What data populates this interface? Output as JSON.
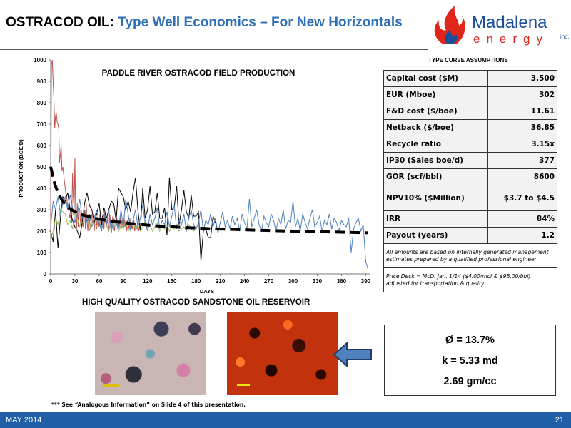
{
  "header": {
    "title_prefix": "OSTRACOD OIL:",
    "title_main": "Type Well Economics – For New Horizontals",
    "logo": {
      "word1": "Madalena",
      "word2": "energy",
      "suffix": "inc."
    }
  },
  "chart_data": {
    "type": "line",
    "title": "PADDLE RIVER OSTRACOD FIELD PRODUCTION",
    "xlabel": "DAYS",
    "ylabel": "PRODUCTION (BOE/D)",
    "xlim": [
      0,
      395
    ],
    "ylim": [
      0,
      1000
    ],
    "x_ticks": [
      0,
      30,
      60,
      90,
      120,
      150,
      180,
      210,
      240,
      270,
      300,
      330,
      360,
      390
    ],
    "y_ticks": [
      0,
      100,
      200,
      300,
      400,
      500,
      600,
      700,
      800,
      900,
      1000
    ],
    "grid": false,
    "legend": "none",
    "series": [
      {
        "color": "#c0504d",
        "x": [
          0,
          1,
          2,
          3,
          4,
          5,
          6,
          7,
          8,
          9,
          10,
          11,
          12,
          13,
          14,
          15,
          16,
          17,
          18,
          19,
          20,
          21,
          22,
          23,
          24,
          25,
          26,
          27,
          28,
          29,
          30,
          31,
          32,
          33,
          34,
          35,
          36,
          37,
          38,
          39,
          40,
          41,
          42,
          43,
          44,
          45,
          46,
          47,
          48,
          49,
          50,
          51,
          52,
          53,
          54,
          55,
          56,
          57,
          58,
          59,
          60,
          61,
          62,
          63,
          64,
          65,
          66,
          67,
          68,
          69,
          70,
          71,
          72,
          73,
          74,
          75,
          76,
          77,
          78,
          79,
          80,
          81,
          82,
          83,
          84,
          85,
          86,
          87,
          88,
          89,
          90,
          91,
          92,
          93,
          94,
          95,
          96,
          97,
          98,
          99,
          100,
          101,
          102,
          103,
          104,
          105,
          106,
          107,
          108,
          109,
          110
        ],
        "y": [
          200,
          980,
          1000,
          900,
          820,
          680,
          740,
          750,
          710,
          700,
          680,
          520,
          560,
          600,
          480,
          500,
          470,
          430,
          400,
          370,
          350,
          320,
          300,
          280,
          260,
          290,
          240,
          470,
          360,
          300,
          540,
          260,
          210,
          330,
          220,
          310,
          300,
          230,
          270,
          240,
          220,
          260,
          300,
          210,
          330,
          250,
          200,
          280,
          260,
          210,
          230,
          280,
          240,
          250,
          200,
          270,
          290,
          210,
          260,
          240,
          220,
          280,
          230,
          200,
          270,
          250,
          210,
          290,
          240,
          220,
          260,
          230,
          200,
          280,
          250,
          210,
          240,
          270,
          220,
          200,
          250,
          230,
          260,
          210,
          240,
          220,
          270,
          200,
          250,
          230,
          210,
          260,
          220,
          240,
          200,
          250,
          230,
          210,
          260,
          220,
          240,
          210,
          230,
          250,
          200,
          240,
          220,
          210,
          230,
          200,
          220
        ]
      },
      {
        "color": "#000000",
        "x": [
          0,
          3,
          6,
          9,
          12,
          15,
          18,
          21,
          24,
          27,
          30,
          33,
          36,
          39,
          42,
          45,
          48,
          51,
          54,
          57,
          60,
          63,
          66,
          69,
          72,
          75,
          78,
          81,
          84,
          87,
          90,
          93,
          96,
          99,
          102,
          105,
          108,
          111,
          114,
          117,
          120,
          123,
          126,
          129,
          132,
          135,
          138,
          141,
          144,
          147,
          150,
          153,
          156,
          159,
          162,
          165,
          168,
          171,
          174,
          177,
          180,
          183,
          186,
          189,
          192,
          195,
          198,
          201,
          204,
          207,
          210
        ],
        "y": [
          200,
          150,
          300,
          120,
          260,
          360,
          340,
          380,
          300,
          250,
          220,
          200,
          170,
          240,
          330,
          380,
          320,
          300,
          240,
          280,
          330,
          230,
          310,
          260,
          300,
          340,
          330,
          250,
          400,
          380,
          360,
          300,
          340,
          290,
          380,
          450,
          300,
          200,
          400,
          260,
          300,
          410,
          280,
          290,
          380,
          260,
          260,
          310,
          180,
          450,
          300,
          310,
          410,
          230,
          300,
          390,
          290,
          260,
          370,
          270,
          270,
          290,
          60,
          200,
          210,
          170,
          170,
          270,
          240,
          200,
          210
        ]
      },
      {
        "color": "#9bbb59",
        "x": [
          0,
          3,
          6,
          9,
          12,
          15,
          18,
          21,
          24,
          27,
          30,
          33,
          36,
          39,
          42,
          45,
          48,
          51,
          54,
          57,
          60,
          63,
          66,
          69,
          72,
          75,
          78,
          81,
          84,
          87,
          90,
          93,
          96,
          99,
          102,
          105,
          108,
          111,
          114,
          117,
          120,
          123,
          126,
          129,
          132,
          135,
          138,
          141,
          144,
          147,
          150,
          153,
          156,
          159,
          162,
          165,
          168,
          171,
          174,
          177,
          180
        ],
        "y": [
          160,
          200,
          260,
          230,
          300,
          290,
          280,
          230,
          250,
          210,
          290,
          260,
          220,
          270,
          300,
          280,
          200,
          260,
          240,
          220,
          250,
          210,
          260,
          230,
          200,
          250,
          220,
          240,
          200,
          230,
          210,
          250,
          200,
          220,
          240,
          210,
          230,
          200,
          220,
          250,
          210,
          230,
          200,
          220,
          240,
          200,
          220,
          210,
          230,
          200,
          220,
          210,
          230,
          200,
          210,
          220,
          200,
          230,
          210,
          200,
          210
        ]
      },
      {
        "color": "#4f81bd",
        "x": [
          0,
          3,
          6,
          9,
          12,
          15,
          18,
          21,
          24,
          27,
          30,
          33,
          36,
          39,
          42,
          45,
          48,
          51,
          54,
          57,
          60,
          63,
          66,
          69,
          72,
          75,
          78,
          81,
          84,
          87,
          90,
          93,
          96,
          99,
          102,
          105,
          108,
          111,
          114,
          117,
          120,
          123,
          126,
          129,
          132,
          135,
          138,
          141,
          144,
          147,
          150,
          153,
          156,
          159,
          162,
          165,
          168,
          171,
          174,
          177,
          180,
          183,
          186,
          189,
          192,
          195,
          198,
          201,
          204,
          207,
          210,
          213,
          216,
          219,
          222,
          225,
          228,
          231,
          234,
          237,
          240,
          243,
          246,
          249,
          252,
          255,
          258,
          261,
          264,
          267,
          270,
          273,
          276,
          279,
          282,
          285,
          288,
          291,
          294,
          297,
          300,
          303,
          306,
          309,
          312,
          315,
          318,
          321,
          324,
          327,
          330,
          333,
          336,
          339,
          342,
          345,
          348,
          351,
          354,
          357,
          360,
          363,
          366,
          369,
          372,
          375,
          378,
          381,
          384,
          387,
          390,
          393
        ],
        "y": [
          220,
          340,
          300,
          360,
          280,
          330,
          360,
          300,
          370,
          310,
          240,
          280,
          350,
          260,
          300,
          240,
          280,
          220,
          260,
          300,
          240,
          200,
          280,
          230,
          300,
          190,
          260,
          240,
          210,
          300,
          220,
          350,
          280,
          200,
          250,
          300,
          220,
          260,
          320,
          240,
          200,
          280,
          230,
          260,
          310,
          210,
          250,
          230,
          290,
          220,
          270,
          320,
          210,
          250,
          230,
          280,
          200,
          260,
          300,
          230,
          210,
          240,
          300,
          200,
          250,
          230,
          280,
          220,
          260,
          190,
          240,
          290,
          220,
          250,
          210,
          270,
          230,
          260,
          200,
          280,
          240,
          210,
          350,
          220,
          260,
          300,
          230,
          200,
          270,
          240,
          220,
          280,
          250,
          200,
          260,
          230,
          300,
          210,
          250,
          240,
          340,
          220,
          260,
          200,
          280,
          240,
          210,
          260,
          300,
          220,
          240,
          270,
          200,
          250,
          230,
          280,
          210,
          260,
          240,
          200,
          250,
          230,
          220,
          260,
          100,
          210,
          240,
          260,
          200,
          230,
          60,
          20
        ]
      },
      {
        "color": "#000000",
        "dashed": true,
        "x": [
          0,
          5,
          10,
          15,
          20,
          30,
          40,
          60,
          80,
          100,
          130,
          160,
          200,
          250,
          300,
          350,
          393
        ],
        "y": [
          500,
          420,
          370,
          340,
          315,
          290,
          275,
          256,
          244,
          235,
          225,
          218,
          211,
          205,
          200,
          196,
          192
        ]
      }
    ]
  },
  "assumptions": {
    "title": "TYPE CURVE ASSUMPTIONS",
    "rows": [
      {
        "label": "Capital cost ($M)",
        "value": "3,500"
      },
      {
        "label": "EUR (Mboe)",
        "value": "302"
      },
      {
        "label": "F&D cost ($/boe)",
        "value": "11.61"
      },
      {
        "label": "Netback ($/boe)",
        "value": "36.85"
      },
      {
        "label": "Recycle ratio",
        "value": "3.15x"
      },
      {
        "label": "IP30 (Sales boe/d)",
        "value": "377"
      },
      {
        "label": "GOR (scf/bbl)",
        "value": "8600"
      },
      {
        "label": "NPV10% ($Million)",
        "value": "$3.7 to $4.5"
      },
      {
        "label": "IRR",
        "value": "84%"
      },
      {
        "label": "Payout (years)",
        "value": "1.2"
      }
    ],
    "note1": "All amounts are based on internally generated management estimates prepared by a qualified professional engineer",
    "note2": "Price Deck = McD. Jan. 1/14 ($4.00/mcf & $95.00/bbl) adjusted for transportation & quality"
  },
  "reservoir": {
    "title": "HIGH QUALITY OSTRACOD SANDSTONE OIL RESERVOIR"
  },
  "properties": {
    "porosity": "Ø = 13.7%",
    "permeability": "k = 5.33 md",
    "density": "2.69 gm/cc"
  },
  "footnote": "*** See “Analogous Information” on Slide 4 of this presentation.",
  "footer": {
    "date": "MAY 2014",
    "page": "21"
  },
  "colors": {
    "title_blue": "#2f6fb4",
    "footer_blue": "#1f5fa8",
    "logo_red": "#e0261b",
    "logo_blue": "#1b4f9c"
  }
}
